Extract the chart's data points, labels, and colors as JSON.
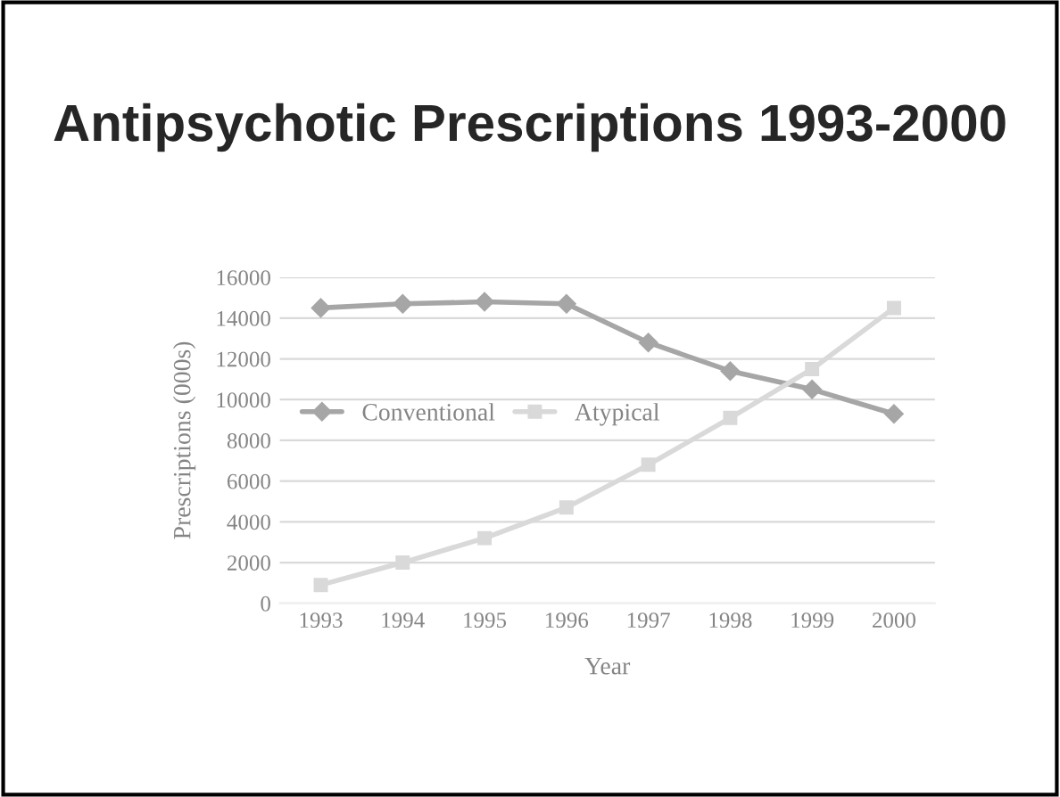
{
  "chart_data": {
    "type": "line",
    "title": "Antipsychotic Prescriptions 1993-2000",
    "xlabel": "Year",
    "ylabel": "Prescriptions (000s)",
    "categories": [
      "1993",
      "1994",
      "1995",
      "1996",
      "1997",
      "1998",
      "1999",
      "2000"
    ],
    "series": [
      {
        "name": "Conventional",
        "color": "#a6a6a6",
        "marker": "diamond",
        "values": [
          14500,
          14700,
          14800,
          14700,
          12800,
          11400,
          10500,
          9300
        ]
      },
      {
        "name": "Atypical",
        "color": "#d9d9d9",
        "marker": "square",
        "values": [
          900,
          2000,
          3200,
          4700,
          6800,
          9100,
          11500,
          14500
        ]
      }
    ],
    "ylim": [
      0,
      16000
    ],
    "yticks": [
      0,
      2000,
      4000,
      6000,
      8000,
      10000,
      12000,
      14000,
      16000
    ],
    "grid": "y",
    "legend": "center left",
    "line_style": "solid"
  }
}
